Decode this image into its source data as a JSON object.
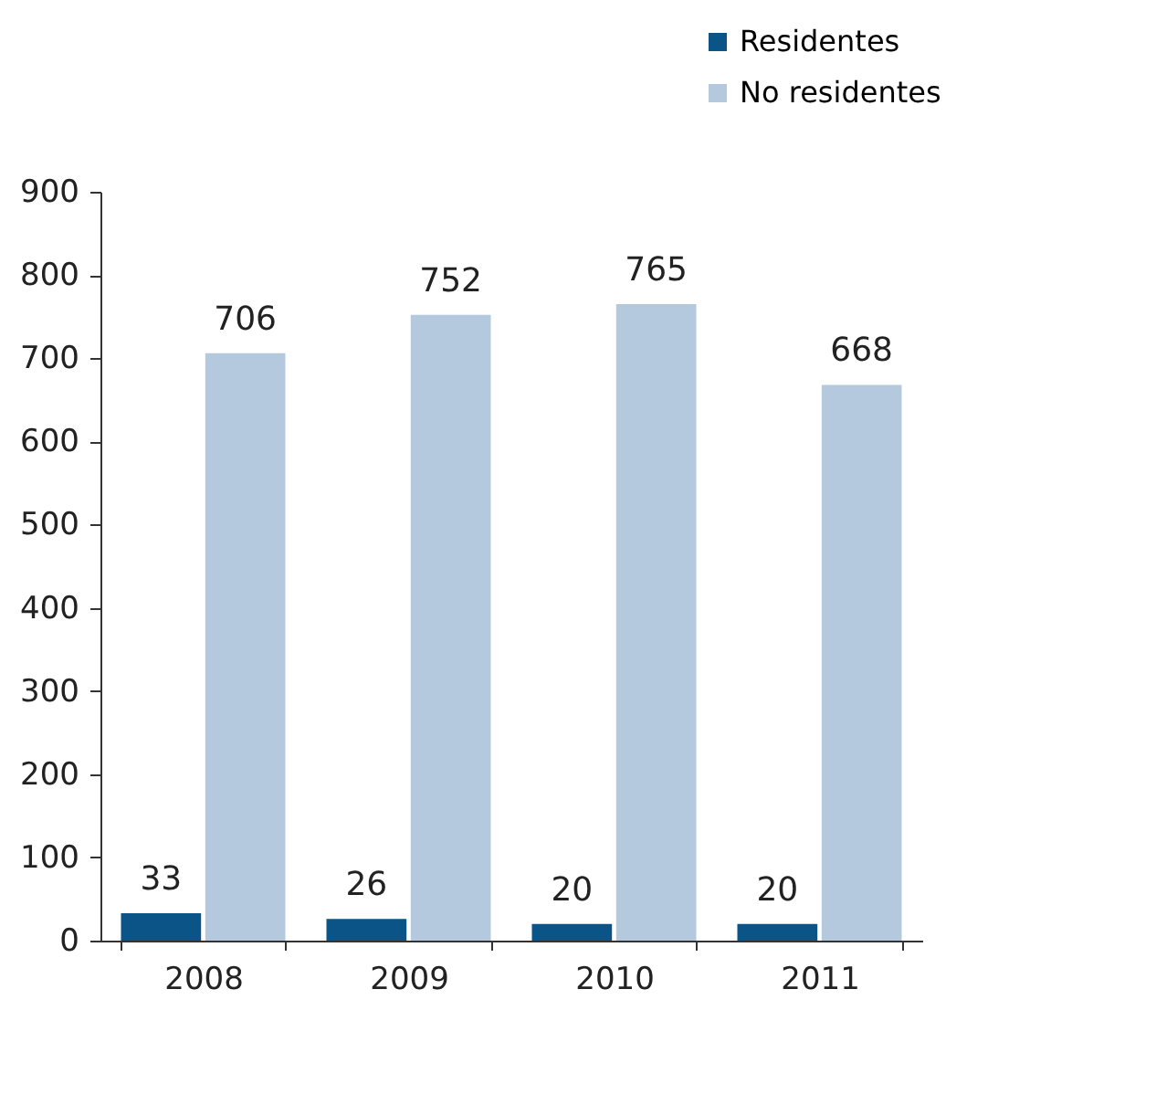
{
  "chart_data": {
    "type": "bar",
    "categories": [
      "2008",
      "2009",
      "2010",
      "2011"
    ],
    "series": [
      {
        "name": "Residentes",
        "color": "#0b5487",
        "values": [
          33,
          26,
          20,
          20
        ]
      },
      {
        "name": "No residentes",
        "color": "#b5c9de",
        "values": [
          706,
          752,
          765,
          668
        ]
      }
    ],
    "ylim": [
      0,
      900
    ],
    "yticks": [
      0,
      100,
      200,
      300,
      400,
      500,
      600,
      700,
      800,
      900
    ],
    "data_labels": true,
    "legend": "top right",
    "grid": false
  }
}
